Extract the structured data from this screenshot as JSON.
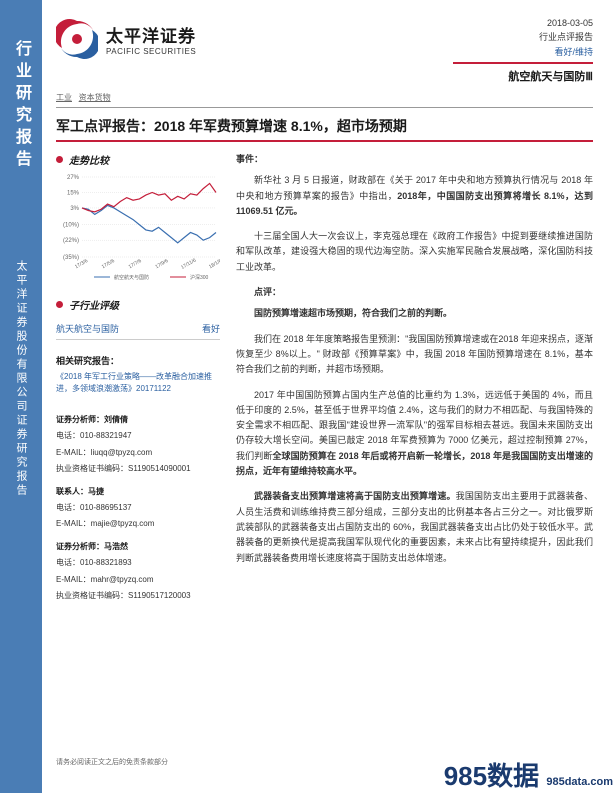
{
  "sidebar": {
    "title1": "行业研究报告",
    "title2": "太平洋证券股份有限公司证券研究报告"
  },
  "logo": {
    "cn": "太平洋证券",
    "en": "PACIFIC SECURITIES"
  },
  "header": {
    "date": "2018-03-05",
    "type": "行业点评报告",
    "rating": "看好/维持",
    "sector": "航空航天与国防Ⅲ"
  },
  "subheader": {
    "cat1": "工业",
    "cat2": "资本货物"
  },
  "title": "军工点评报告：2018 年军费预算增速 8.1%，超市场预期",
  "chart": {
    "section_title": "走势比较",
    "y_ticks": [
      "27%",
      "15%",
      "3%",
      "(10%)",
      "(22%)",
      "(35%)"
    ],
    "x_ticks": [
      "17/3/6",
      "17/5/6",
      "17/7/6",
      "17/9/6",
      "17/11/6",
      "18/1/6"
    ],
    "legend1": "航空航天与国防",
    "legend2": "沪深300",
    "line1_color": "#3a6fb0",
    "line2_color": "#c41e3a",
    "series1": [
      3,
      2,
      -2,
      1,
      5,
      3,
      0,
      -3,
      -6,
      -10,
      -14,
      -15,
      -12,
      -16,
      -20,
      -24,
      -20,
      -16,
      -18,
      -22,
      -20,
      -16
    ],
    "series2": [
      3,
      1,
      0,
      2,
      6,
      4,
      8,
      11,
      9,
      10,
      13,
      15,
      13,
      14,
      9,
      12,
      10,
      14,
      13,
      18,
      22,
      15
    ]
  },
  "rating_section": {
    "title": "子行业评级",
    "label": "航天航空与国防",
    "value": "看好"
  },
  "related": {
    "title": "相关研究报告：",
    "text": "《2018 年军工行业策略——改革融合加速推进，多领域浪潮激荡》20171122"
  },
  "analysts": {
    "a1_label": "证券分析师：刘倩倩",
    "a1_tel_label": "电话：",
    "a1_tel": "010-88321947",
    "a1_email_label": "E-MAIL：",
    "a1_email": "liuqq@tpyzq.com",
    "a1_cert_label": "执业资格证书编码：",
    "a1_cert": "S1190514090001",
    "a2_label": "联系人：马捷",
    "a2_tel_label": "电话：",
    "a2_tel": "010-88695137",
    "a2_email_label": "E-MAIL：",
    "a2_email": "majie@tpyzq.com",
    "a3_label": "证券分析师：马浩然",
    "a3_tel_label": "电话：",
    "a3_tel": "010-88321893",
    "a3_email_label": "E-MAIL：",
    "a3_email": "mahr@tpyzq.com",
    "a3_cert_label": "执业资格证书编码：",
    "a3_cert": "S1190517120003"
  },
  "body": {
    "event_label": "事件：",
    "p1a": "新华社 3 月 5 日报道，财政部在《关于 2017 年中央和地方预算执行情况与 2018 年中央和地方预算草案的报告》中指出，",
    "p1b": "2018年，中国国防支出预算将增长 8.1%，达到 11069.51 亿元。",
    "p2": "十三届全国人大一次会议上，李克强总理在《政府工作报告》中提到要继续推进国防和军队改革，建设强大稳固的现代边海空防。深入实施军民融合发展战略，深化国防科技工业改革。",
    "comment_label": "点评：",
    "p3": "国防预算增速超市场预期，符合我们之前的判断。",
    "p4": "我们在 2018 年年度策略报告里预测：\"我国国防预算增速或在2018 年迎来拐点，逐渐恢复至少 8%以上。\" 财政部《预算草案》中，我国 2018 年国防预算增速在 8.1%，基本符合我们之前的判断，并超市场预期。",
    "p5a": "2017 年中国国防预算占国内生产总值的比重约为 1.3%，远远低于美国的 4%，而且低于印度的 2.5%，甚至低于世界平均值 2.4%，这与我们的财力不相匹配、与我国特殊的安全需求不相匹配、跟我国\"建设世界一流军队\"的强军目标相去甚远。我国未来国防支出仍存较大增长空间。美国已敲定 2018 年军费预算为 7000 亿美元，超过控制预算 27%，我们判断",
    "p5b": "全球国防预算在 2018 年后或将开启新一轮增长，2018 年是我国国防支出增速的拐点，近年有望维持较高水平。",
    "p6a": "武器装备支出预算增速将高于国防支出预算增速。",
    "p6b": "我国国防支出主要用于武器装备、人员生活费和训练维持费三部分组成，三部分支出的比例基本各占三分之一。对比俄罗斯武装部队的武器装备支出占国防支出的 60%，我国武器装备支出占比仍处于较低水平。武器装备的更新换代是提高我国军队现代化的重要因素，未来占比有望持续提升，因此我们判断武器装备费用增长速度将高于国防支出总体增速。"
  },
  "footer": {
    "disclaimer": "请务必阅读正文之后的免责条款部分",
    "watermark": "985数据",
    "watermark_sub": "985data.com"
  }
}
